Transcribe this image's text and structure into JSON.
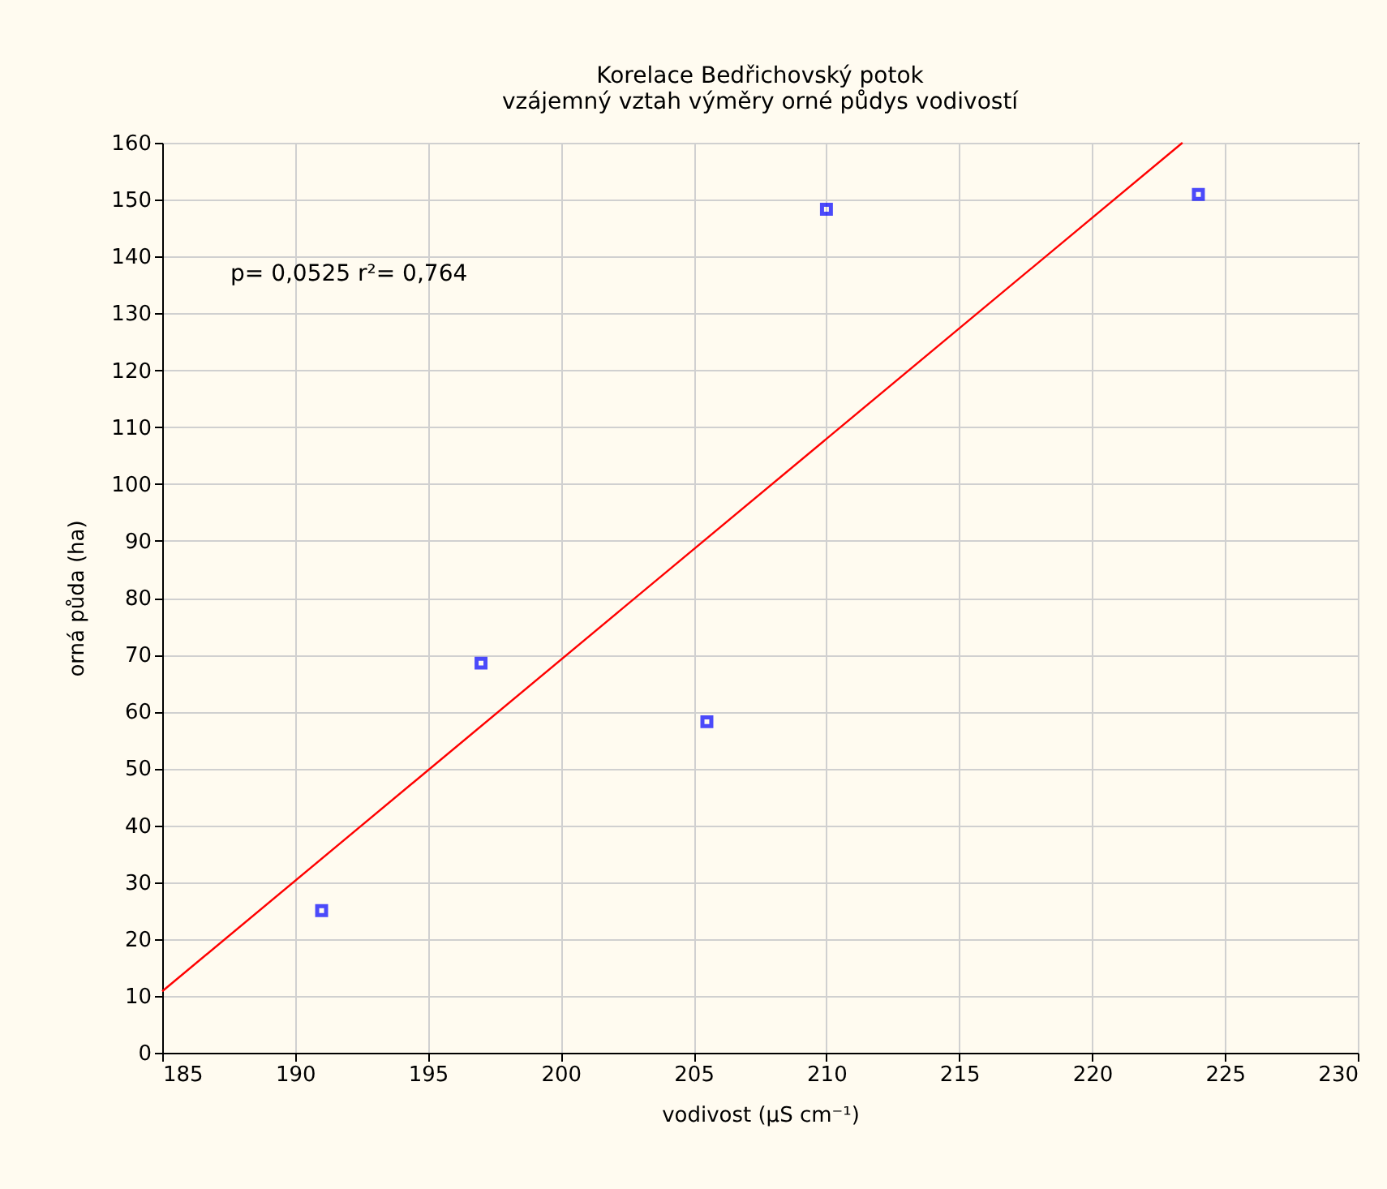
{
  "chart_data": {
    "type": "scatter",
    "title": [
      "Korelace Bedřichovský potok",
      "vzájemný vztah výměry orné půdys vodivostí"
    ],
    "xlabel": "vodivost (µS cm⁻¹)",
    "ylabel": "orná půda (ha)",
    "annotations": [
      "p= 0,0525 r²= 0,764"
    ],
    "series": [
      {
        "type": "scatter",
        "color": "#0000ff",
        "x": [
          191,
          197,
          205.5,
          210,
          224
        ],
        "values": [
          25,
          68.5,
          58.2,
          148.3,
          150.9
        ],
        "marker": "square"
      },
      {
        "type": "line",
        "color": "#ff0000",
        "x": [
          185,
          223.4
        ],
        "values": [
          10.8,
          160
        ],
        "line_style": "solid"
      }
    ],
    "xlim": [
      185,
      230
    ],
    "xticks": [
      185,
      190,
      195,
      200,
      205,
      210,
      215,
      220,
      225,
      230
    ],
    "ylim": [
      0,
      160
    ],
    "yticks": [
      0,
      10,
      20,
      30,
      40,
      50,
      60,
      70,
      80,
      90,
      100,
      110,
      120,
      130,
      140,
      150,
      160
    ],
    "grid": true
  }
}
